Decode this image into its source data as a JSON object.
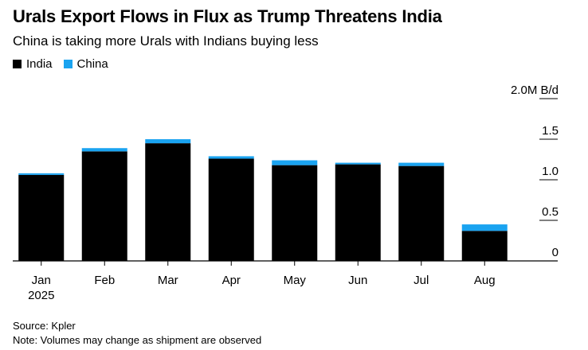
{
  "title": "Urals Export Flows in Flux as Trump Threatens India",
  "subtitle": "China is taking more Urals with Indians buying less",
  "source": "Source: Kpler",
  "note": "Note: Volumes may change as shipment are observed",
  "colors": {
    "india": "#000000",
    "china": "#1aa3f0"
  },
  "chart_data": {
    "type": "bar",
    "stacked": true,
    "categories": [
      "Jan",
      "Feb",
      "Mar",
      "Apr",
      "May",
      "Jun",
      "Jul",
      "Aug"
    ],
    "category_sublabels": [
      "2025",
      "",
      "",
      "",
      "",
      "",
      "",
      ""
    ],
    "series": [
      {
        "name": "India",
        "values": [
          1.06,
          1.35,
          1.45,
          1.26,
          1.18,
          1.19,
          1.17,
          0.37
        ]
      },
      {
        "name": "China",
        "values": [
          0.02,
          0.04,
          0.05,
          0.03,
          0.06,
          0.02,
          0.04,
          0.08
        ]
      }
    ],
    "yticks": [
      0,
      0.5,
      1.0,
      1.5,
      2.0
    ],
    "ytick_labels": [
      "0",
      "0.5",
      "1.0",
      "1.5",
      "2.0M B/d"
    ],
    "ylim": [
      0,
      2.0
    ],
    "y_axis_position": "right",
    "legend_position": "top-left",
    "grid": false
  }
}
